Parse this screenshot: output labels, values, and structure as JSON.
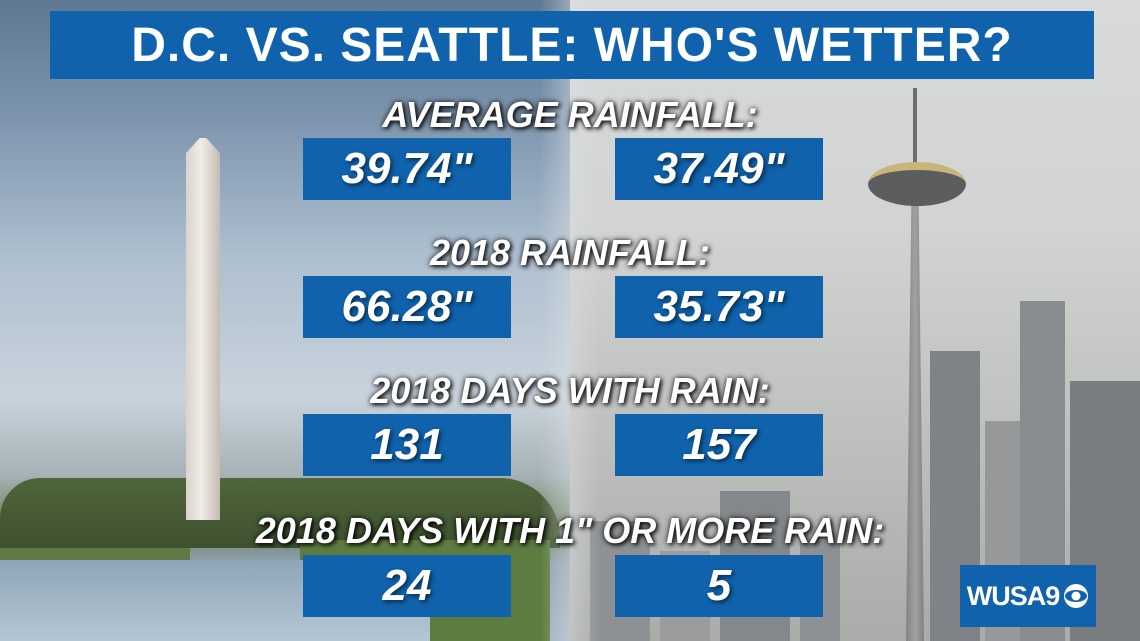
{
  "title": "D.C. VS. SEATTLE: WHO'S WETTER?",
  "sections": [
    {
      "label": "AVERAGE RAINFALL:",
      "dc": "39.74\"",
      "seattle": "37.49\""
    },
    {
      "label": "2018 RAINFALL:",
      "dc": "66.28\"",
      "seattle": "35.73\""
    },
    {
      "label": "2018 DAYS WITH RAIN:",
      "dc": "131",
      "seattle": "157"
    },
    {
      "label": "2018 DAYS WITH 1\" OR MORE RAIN:",
      "dc": "24",
      "seattle": "5"
    }
  ],
  "logo": {
    "text": "WUSA9",
    "icon": "cbs-eye-icon"
  },
  "colors": {
    "panel_blue": "#0f62ab",
    "text": "#ffffff"
  }
}
